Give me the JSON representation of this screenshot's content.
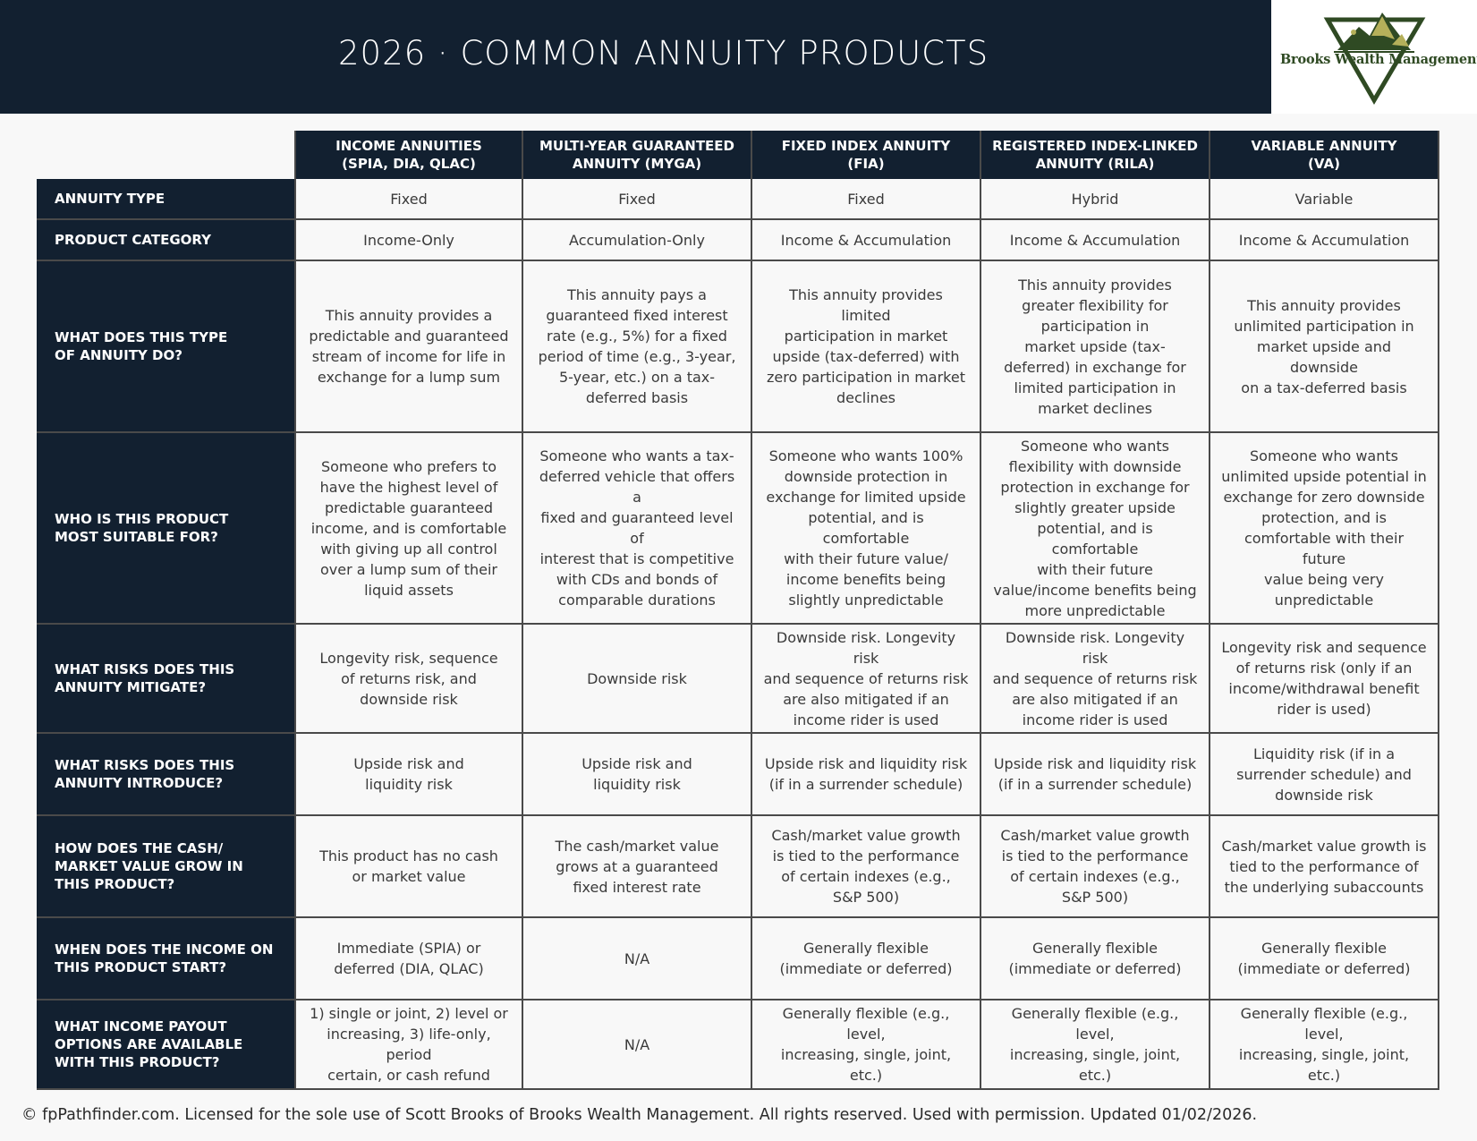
{
  "header": {
    "title": "2026 · COMMON ANNUITY PRODUCTS"
  },
  "logo": {
    "text": "Brooks Wealth Management",
    "colors": {
      "mountain": "#2f4a23",
      "accent": "#b5b05a"
    }
  },
  "columns": [
    {
      "line1": "INCOME ANNUITIES",
      "line2": "(SPIA, DIA, QLAC)"
    },
    {
      "line1": "MULTI-YEAR GUARANTEED",
      "line2": "ANNUITY (MYGA)"
    },
    {
      "line1": "FIXED INDEX ANNUITY",
      "line2": "(FIA)"
    },
    {
      "line1": "REGISTERED INDEX-LINKED",
      "line2": "ANNUITY (RILA)"
    },
    {
      "line1": "VARIABLE ANNUITY",
      "line2": "(VA)"
    }
  ],
  "rows": [
    {
      "label_lines": [
        "ANNUITY TYPE"
      ],
      "cells": [
        "Fixed",
        "Fixed",
        "Fixed",
        "Hybrid",
        "Variable"
      ]
    },
    {
      "label_lines": [
        "PRODUCT CATEGORY"
      ],
      "cells": [
        "Income-Only",
        "Accumulation-Only",
        "Income & Accumulation",
        "Income & Accumulation",
        "Income & Accumulation"
      ]
    },
    {
      "label_lines": [
        "WHAT DOES THIS TYPE",
        "OF ANNUITY DO?"
      ],
      "cells": [
        [
          "This annuity provides a",
          "predictable and guaranteed",
          "stream of income for life in",
          "exchange for a lump sum"
        ],
        [
          "This annuity pays a",
          "guaranteed fixed interest",
          "rate (e.g., 5%) for a fixed",
          "period of time (e.g., 3-year,",
          "5-year, etc.) on a tax-",
          "deferred basis"
        ],
        [
          "This annuity provides limited",
          "participation in market",
          "upside (tax-deferred) with",
          "zero participation in market",
          "declines"
        ],
        [
          "This annuity provides",
          "greater flexibility for",
          "participation in",
          "market upside (tax-",
          "deferred) in exchange for",
          "limited participation in",
          "market declines"
        ],
        [
          "This annuity provides",
          "unlimited participation in",
          "market upside and downside",
          "on a tax-deferred basis"
        ]
      ]
    },
    {
      "label_lines": [
        "WHO IS THIS PRODUCT",
        "MOST SUITABLE FOR?"
      ],
      "cells": [
        [
          "Someone who prefers to",
          "have the highest level of",
          "predictable guaranteed",
          "income, and is comfortable",
          "with giving up all control",
          "over a lump sum of their",
          "liquid assets"
        ],
        [
          "Someone who wants a tax-",
          "deferred vehicle that offers a",
          "fixed and guaranteed level of",
          "interest that is competitive",
          "with CDs and bonds of",
          "comparable durations"
        ],
        [
          "Someone who wants 100%",
          "downside protection in",
          "exchange for limited upside",
          "potential, and is comfortable",
          "with their future value/",
          "income benefits being",
          "slightly unpredictable"
        ],
        [
          "Someone who wants",
          "flexibility with downside",
          "protection in exchange for",
          "slightly greater upside",
          "potential, and is comfortable",
          "with their future",
          "value/income benefits being",
          "more unpredictable"
        ],
        [
          "Someone who wants",
          "unlimited upside potential in",
          "exchange for zero downside",
          "protection, and is",
          "comfortable with their future",
          "value being very",
          "unpredictable"
        ]
      ]
    },
    {
      "label_lines": [
        "WHAT RISKS DOES THIS",
        "ANNUITY MITIGATE?"
      ],
      "cells": [
        [
          "Longevity risk, sequence",
          "of returns risk, and",
          "downside risk"
        ],
        [
          "Downside risk"
        ],
        [
          "Downside risk. Longevity risk",
          "and sequence of returns risk",
          "are also mitigated if an",
          "income rider is used"
        ],
        [
          "Downside risk. Longevity risk",
          "and sequence of returns risk",
          "are also mitigated if an",
          "income rider is used"
        ],
        [
          "Longevity risk and sequence",
          "of returns risk (only if an",
          "income/withdrawal benefit",
          "rider is used)"
        ]
      ]
    },
    {
      "label_lines": [
        "WHAT RISKS DOES THIS",
        "ANNUITY INTRODUCE?"
      ],
      "cells": [
        [
          "Upside risk and",
          "liquidity risk"
        ],
        [
          "Upside risk and",
          "liquidity risk"
        ],
        [
          "Upside risk and liquidity risk",
          "(if in a surrender schedule)"
        ],
        [
          "Upside risk and liquidity risk",
          "(if in a surrender schedule)"
        ],
        [
          "Liquidity risk (if in a",
          "surrender schedule) and",
          "downside risk"
        ]
      ]
    },
    {
      "label_lines": [
        "HOW DOES THE CASH/",
        "MARKET VALUE GROW IN",
        "THIS PRODUCT?"
      ],
      "cells": [
        [
          "This product has no cash",
          "or market value"
        ],
        [
          "The cash/market value",
          "grows at a guaranteed",
          "fixed interest rate"
        ],
        [
          "Cash/market value growth",
          "is tied to the performance",
          "of certain indexes (e.g.,",
          "S&P 500)"
        ],
        [
          "Cash/market value growth",
          "is tied to the performance",
          "of certain indexes (e.g.,",
          "S&P 500)"
        ],
        [
          "Cash/market value growth is",
          "tied to the performance of",
          "the underlying subaccounts"
        ]
      ]
    },
    {
      "label_lines": [
        "WHEN DOES THE INCOME ON",
        "THIS PRODUCT START?"
      ],
      "cells": [
        [
          "Immediate (SPIA) or",
          "deferred (DIA, QLAC)"
        ],
        [
          "N/A"
        ],
        [
          "Generally flexible",
          "(immediate or deferred)"
        ],
        [
          "Generally flexible",
          "(immediate or deferred)"
        ],
        [
          "Generally flexible",
          "(immediate or deferred)"
        ]
      ]
    },
    {
      "label_lines": [
        "WHAT INCOME PAYOUT",
        "OPTIONS ARE AVAILABLE",
        "WITH THIS PRODUCT?"
      ],
      "cells": [
        [
          "1) single or joint, 2) level or",
          "increasing, 3) life-only, period",
          "certain, or cash refund"
        ],
        [
          "N/A"
        ],
        [
          "Generally flexible (e.g., level,",
          "increasing, single, joint, etc.)"
        ],
        [
          "Generally flexible (e.g., level,",
          "increasing, single, joint, etc.)"
        ],
        [
          "Generally flexible (e.g., level,",
          "increasing, single, joint, etc.)"
        ]
      ]
    }
  ],
  "footer": {
    "text": "© fpPathfinder.com. Licensed for the sole use of Scott Brooks of Brooks Wealth Management. All rights reserved. Used with permission. Updated 01/02/2026."
  }
}
